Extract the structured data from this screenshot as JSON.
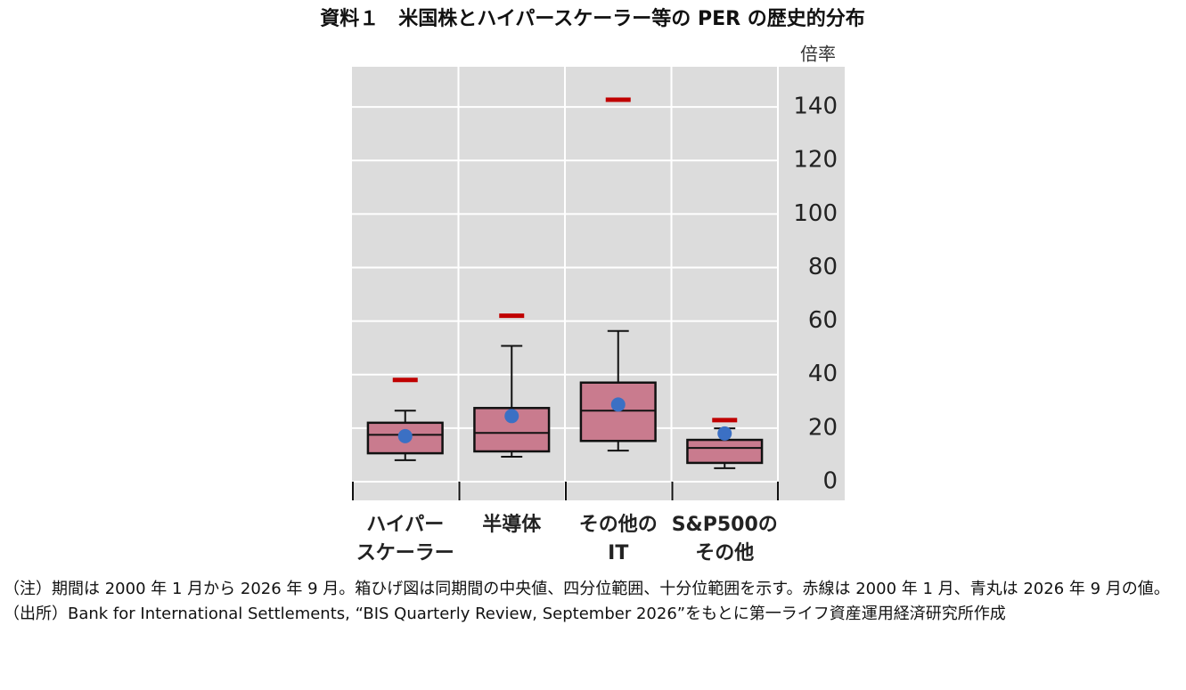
{
  "chart_data": {
    "type": "box",
    "title": "資料１　米国株とハイパースケーラー等の PER の歴史的分布",
    "y_unit": "倍率",
    "categories": [
      [
        "ハイパー",
        "スケーラー"
      ],
      [
        "半導体"
      ],
      [
        "その他の",
        "IT"
      ],
      [
        "S&P500の",
        "その他"
      ]
    ],
    "boxes": [
      {
        "low": 8,
        "q1": 10.6,
        "median": 17.5,
        "q3": 22,
        "high": 26.5
      },
      {
        "low": 9.3,
        "q1": 11.3,
        "median": 18.2,
        "q3": 27.5,
        "high": 50.7
      },
      {
        "low": 11.6,
        "q1": 15.2,
        "median": 26.5,
        "q3": 37,
        "high": 56.3
      },
      {
        "low": 5,
        "q1": 7,
        "median": 12.6,
        "q3": 15.6,
        "high": 19.9
      }
    ],
    "start_values": [
      38,
      62,
      142.7,
      23
    ],
    "latest_values": [
      17,
      24.5,
      28.8,
      18
    ],
    "box_color": "#c97b8e",
    "start_color": "#c00000",
    "latest_color": "#3b70c4",
    "ylim": [
      -7,
      155
    ],
    "yticks": [
      0,
      20,
      40,
      60,
      80,
      100,
      120,
      140
    ],
    "grid": true
  },
  "notes": [
    "（注）期間は 2000 年 1 月から 2026 年 9 月。箱ひげ図は同期間の中央値、四分位範囲、十分位範囲を示す。赤線は 2000 年 1 月、青丸は 2026 年 9 月の値。",
    "（出所）Bank for International Settlements, “BIS Quarterly Review, September 2026”をもとに第一ライフ資産運用経済研究所作成"
  ]
}
